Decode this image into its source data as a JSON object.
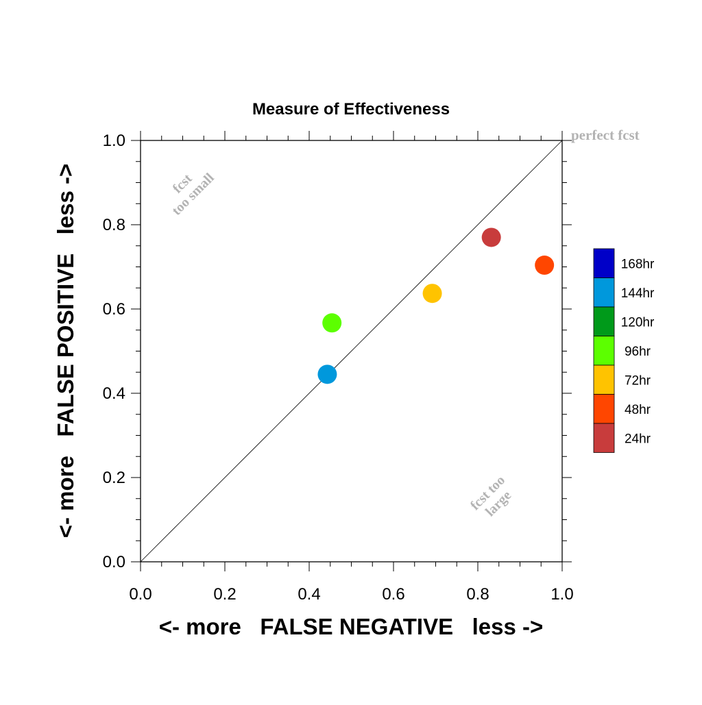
{
  "chart_data": {
    "type": "scatter",
    "title": "Measure of Effectiveness",
    "xlabel": "<- more   FALSE NEGATIVE   less ->",
    "ylabel": "<- more   FALSE POSITIVE   less ->",
    "xlim": [
      0.0,
      1.0
    ],
    "ylim": [
      0.0,
      1.0
    ],
    "x_ticks": [
      "0.0",
      "0.2",
      "0.4",
      "0.6",
      "0.8",
      "1.0"
    ],
    "y_ticks": [
      "0.0",
      "0.2",
      "0.4",
      "0.6",
      "0.8",
      "1.0"
    ],
    "grid": false,
    "diagonal_reference_line": true,
    "legend_position": "right",
    "annotations": {
      "perfect": "perfect fcst",
      "too_small_line1": "fcst",
      "too_small_line2": "too small",
      "too_large_line1": "fcst too",
      "too_large_line2": "large"
    },
    "annotation_color": "#b3b3b3",
    "series": [
      {
        "name": "168hr",
        "color": "#0000c8",
        "points": []
      },
      {
        "name": "144hr",
        "color": "#0098dc",
        "points": [
          [
            0.443,
            0.445
          ]
        ]
      },
      {
        "name": "120hr",
        "color": "#009a1a",
        "points": []
      },
      {
        "name": "96hr",
        "color": "#5cff00",
        "points": [
          [
            0.454,
            0.567
          ]
        ]
      },
      {
        "name": "72hr",
        "color": "#ffc300",
        "points": [
          [
            0.692,
            0.637
          ]
        ]
      },
      {
        "name": "48hr",
        "color": "#ff4600",
        "points": [
          [
            0.958,
            0.704
          ]
        ]
      },
      {
        "name": "24hr",
        "color": "#c83c3c",
        "points": [
          [
            0.832,
            0.77
          ]
        ]
      }
    ]
  }
}
